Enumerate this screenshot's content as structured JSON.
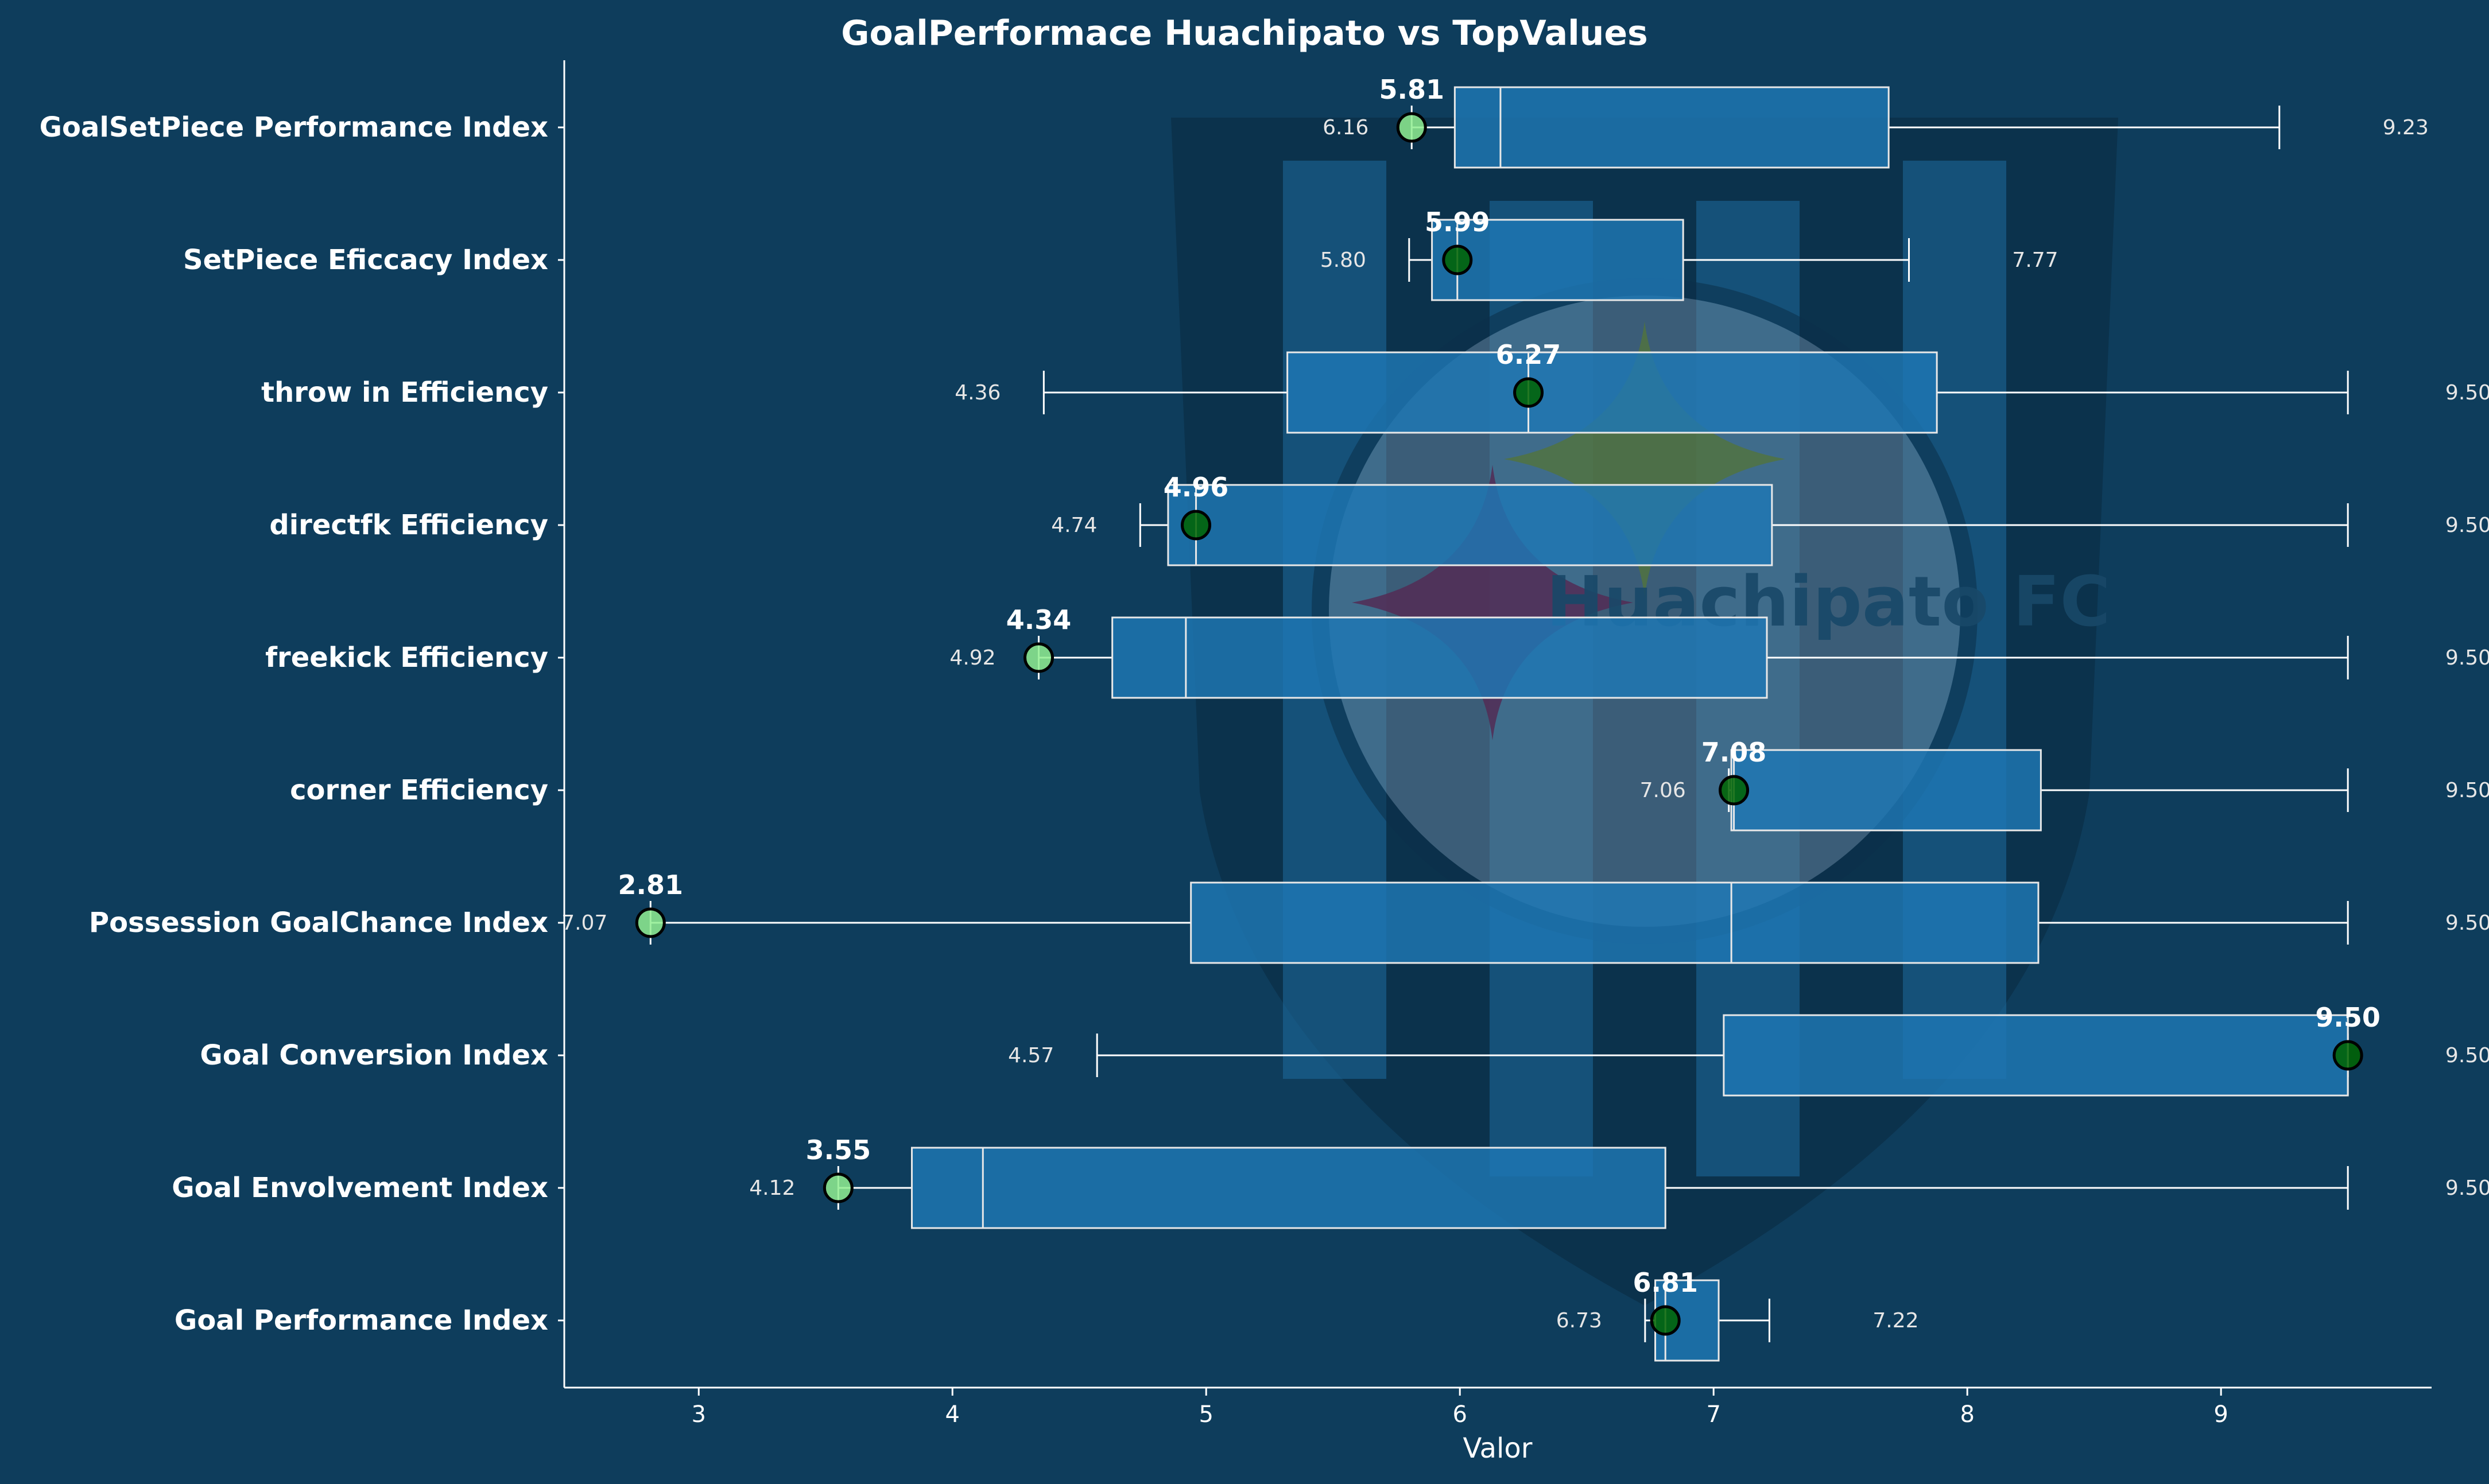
{
  "chart_data": {
    "type": "boxplot",
    "title": "GoalPerformace Huachipato vs TopValues",
    "xlabel": "Valor",
    "ylabel": "",
    "xlim": [
      2.47,
      9.83
    ],
    "xticks": [
      "3",
      "4",
      "5",
      "6",
      "7",
      "8",
      "9"
    ],
    "grid": false,
    "legend": "none",
    "watermark_text": "Huachipato FC",
    "colors": {
      "background": "#0e3d5c",
      "box_fill": "#1f77b4",
      "box_edge": "#e8e8e8",
      "whisker": "#ffffff",
      "text": "#ffffff",
      "marker_light": "#90ee90",
      "marker_dark": "#006400",
      "marker_edge": "#000000"
    },
    "rows": [
      {
        "label": "GoalSetPiece Performance Index",
        "whisker_low": 5.81,
        "q1": 5.98,
        "median": 6.16,
        "q3": 7.69,
        "whisker_high": 9.23,
        "team_value": 5.81,
        "team_label": "5.81",
        "low_label": "6.16",
        "high_label": "9.23",
        "marker": "light"
      },
      {
        "label": "SetPiece Eficcacy Index",
        "whisker_low": 5.8,
        "q1": 5.89,
        "median": 5.99,
        "q3": 6.88,
        "whisker_high": 7.77,
        "team_value": 5.99,
        "team_label": "5.99",
        "low_label": "5.80",
        "high_label": "7.77",
        "marker": "dark"
      },
      {
        "label": "throw in Efficiency",
        "whisker_low": 4.36,
        "q1": 5.32,
        "median": 6.27,
        "q3": 7.88,
        "whisker_high": 9.5,
        "team_value": 6.27,
        "team_label": "6.27",
        "low_label": "4.36",
        "high_label": "9.50",
        "marker": "dark"
      },
      {
        "label": "directfk Efficiency",
        "whisker_low": 4.74,
        "q1": 4.85,
        "median": 4.96,
        "q3": 7.23,
        "whisker_high": 9.5,
        "team_value": 4.96,
        "team_label": "4.96",
        "low_label": "4.74",
        "high_label": "9.50",
        "marker": "dark"
      },
      {
        "label": "freekick Efficiency",
        "whisker_low": 4.34,
        "q1": 4.63,
        "median": 4.92,
        "q3": 7.21,
        "whisker_high": 9.5,
        "team_value": 4.34,
        "team_label": "4.34",
        "low_label": "4.92",
        "high_label": "9.50",
        "marker": "light"
      },
      {
        "label": "corner Efficiency",
        "whisker_low": 7.06,
        "q1": 7.07,
        "median": 7.08,
        "q3": 8.29,
        "whisker_high": 9.5,
        "team_value": 7.08,
        "team_label": "7.08",
        "low_label": "7.06",
        "high_label": "9.50",
        "marker": "dark"
      },
      {
        "label": "Possession GoalChance Index",
        "whisker_low": 2.81,
        "q1": 4.94,
        "median": 7.07,
        "q3": 8.28,
        "whisker_high": 9.5,
        "team_value": 2.81,
        "team_label": "2.81",
        "low_label": "7.07",
        "high_label": "9.50",
        "marker": "light"
      },
      {
        "label": "Goal Conversion Index",
        "whisker_low": 4.57,
        "q1": 7.04,
        "median": 9.5,
        "q3": 9.5,
        "whisker_high": 9.5,
        "team_value": 9.5,
        "team_label": "9.50",
        "low_label": "4.57",
        "high_label": "9.50",
        "marker": "dark"
      },
      {
        "label": "Goal Envolvement Index",
        "whisker_low": 3.55,
        "q1": 3.84,
        "median": 4.12,
        "q3": 6.81,
        "whisker_high": 9.5,
        "team_value": 3.55,
        "team_label": "3.55",
        "low_label": "4.12",
        "high_label": "9.50",
        "marker": "light"
      },
      {
        "label": "Goal Performance Index",
        "whisker_low": 6.73,
        "q1": 6.77,
        "median": 6.81,
        "q3": 7.02,
        "whisker_high": 7.22,
        "team_value": 6.81,
        "team_label": "6.81",
        "low_label": "6.73",
        "high_label": "7.22",
        "marker": "dark"
      }
    ]
  }
}
